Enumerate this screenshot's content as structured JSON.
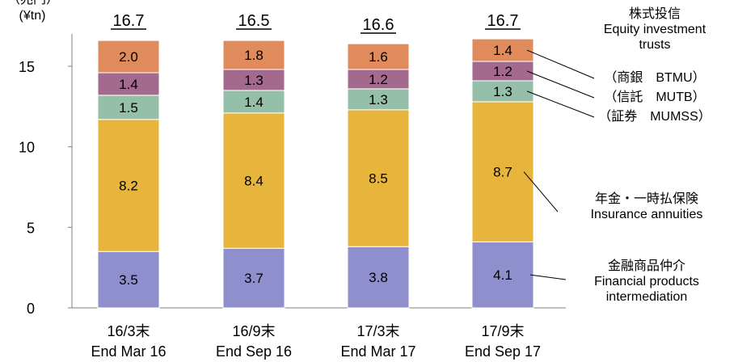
{
  "unit_label": [
    "（兆円）",
    "(¥tn)"
  ],
  "chart_data": {
    "type": "bar",
    "stacked": true,
    "categories": [
      [
        "16/3末",
        "End Mar 16"
      ],
      [
        "16/9末",
        "End Sep 16"
      ],
      [
        "17/3末",
        "End Mar 17"
      ],
      [
        "17/9末",
        "End Sep 17"
      ]
    ],
    "totals": [
      "16.7",
      "16.5",
      "16.6",
      "16.7"
    ],
    "ylim": [
      0,
      17
    ],
    "yticks": [
      0,
      5,
      10,
      15
    ],
    "grid": false,
    "series": [
      {
        "name": "金融商品仲介 Financial products intermediation",
        "color": "#8e8fcc",
        "values": [
          3.5,
          3.7,
          3.8,
          4.1
        ]
      },
      {
        "name": "年金・一時払保険 Insurance annuities",
        "color": "#e7b53c",
        "values": [
          8.2,
          8.4,
          8.5,
          8.7
        ]
      },
      {
        "name": "（証券 MUMSS）",
        "color": "#96bfa9",
        "values": [
          1.5,
          1.4,
          1.3,
          1.3
        ]
      },
      {
        "name": "（信託 MUTB）",
        "color": "#a46a8e",
        "values": [
          1.4,
          1.3,
          1.2,
          1.2
        ]
      },
      {
        "name": "（商銀 BTMU）",
        "color": "#e08b5c",
        "values": [
          2.0,
          1.8,
          1.6,
          1.4
        ]
      }
    ]
  },
  "legend": {
    "equity": [
      "株式投信",
      "Equity investment",
      "trusts"
    ],
    "btmu": "（商銀　BTMU）",
    "mutb": "（信託　MUTB）",
    "mumss": "（証券　MUMSS）",
    "annuities": [
      "年金・一時払保険",
      "Insurance annuities"
    ],
    "intermediation": [
      "金融商品仲介",
      "Financial products",
      "intermediation"
    ]
  }
}
